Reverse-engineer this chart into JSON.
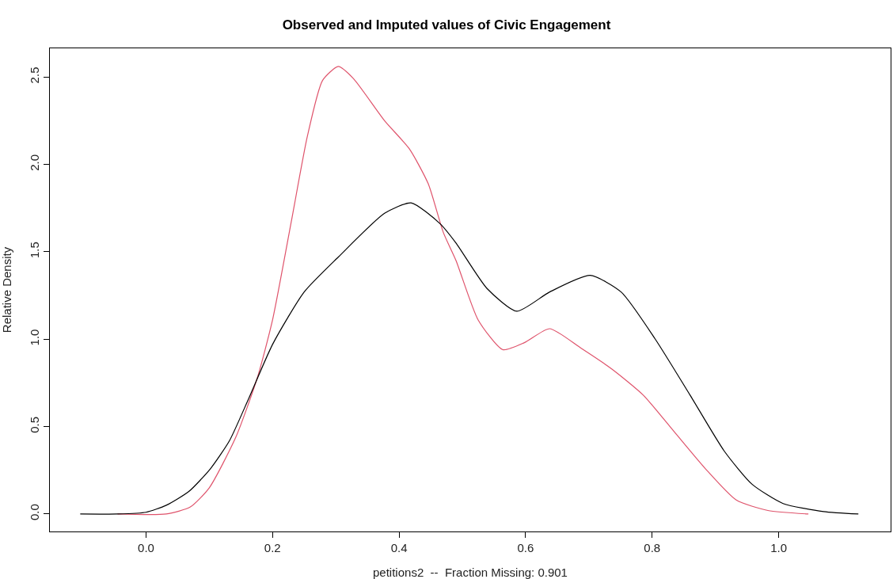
{
  "chart_data": {
    "type": "line",
    "title": "Observed and Imputed values of Civic Engagement",
    "xlabel": "petitions2  --  Fraction Missing: 0.901",
    "ylabel": "Relative Density",
    "series": [
      {
        "color": "#df536b",
        "x": [
          -0.045,
          0.032,
          0.07,
          0.1,
          0.142,
          0.176,
          0.2,
          0.23,
          0.255,
          0.279,
          0.304,
          0.328,
          0.377,
          0.416,
          0.446,
          0.47,
          0.49,
          0.525,
          0.564,
          0.598,
          0.638,
          0.687,
          0.736,
          0.786,
          0.835,
          0.884,
          0.933,
          0.983,
          1.047
        ],
        "values": [
          0,
          0,
          0.04,
          0.15,
          0.44,
          0.78,
          1.11,
          1.68,
          2.16,
          2.48,
          2.56,
          2.49,
          2.25,
          2.09,
          1.89,
          1.61,
          1.45,
          1.11,
          0.94,
          0.98,
          1.06,
          0.95,
          0.83,
          0.68,
          0.47,
          0.26,
          0.08,
          0.02,
          0
        ]
      },
      {
        "color": "#000000",
        "x": [
          -0.104,
          -0.045,
          0.0,
          0.032,
          0.068,
          0.102,
          0.132,
          0.161,
          0.2,
          0.25,
          0.304,
          0.377,
          0.419,
          0.465,
          0.49,
          0.539,
          0.586,
          0.638,
          0.702,
          0.751,
          0.805,
          0.86,
          0.914,
          0.958,
          1.007,
          1.071,
          1.126
        ],
        "values": [
          0,
          0,
          0.01,
          0.05,
          0.13,
          0.26,
          0.42,
          0.65,
          0.97,
          1.27,
          1.47,
          1.72,
          1.78,
          1.66,
          1.55,
          1.29,
          1.16,
          1.27,
          1.365,
          1.27,
          1.0,
          0.68,
          0.36,
          0.17,
          0.06,
          0.014,
          0
        ]
      }
    ],
    "xlim": [
      -0.152,
      1.177
    ],
    "ylim": [
      -0.1,
      2.664
    ],
    "xticks": [
      {
        "value": 0,
        "label": "0.0"
      },
      0.2,
      0.4,
      0.6,
      0.8,
      {
        "value": 1,
        "label": "1.0"
      }
    ],
    "yticks": [
      {
        "value": 0,
        "label": "0.0"
      },
      0.5,
      {
        "value": 1,
        "label": "1.0"
      },
      1.5,
      {
        "value": 2,
        "label": "2.0"
      },
      2.5
    ],
    "marker": "none",
    "line_style": "solid"
  }
}
